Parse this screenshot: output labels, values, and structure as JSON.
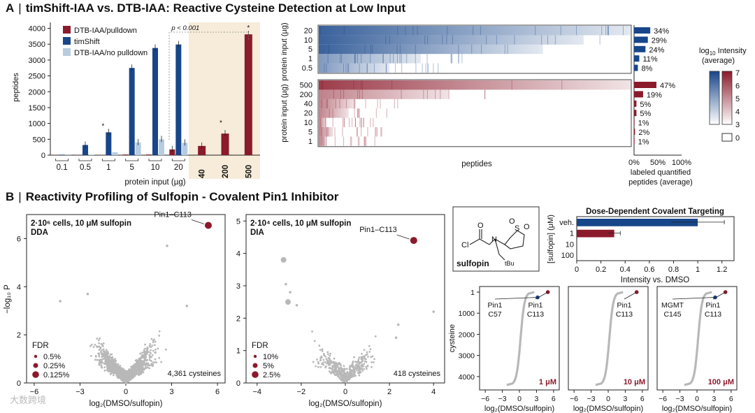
{
  "panel_a": {
    "letter": "A",
    "separator": "|",
    "title": "timShift-IAA vs. DTB-IAA: Reactive Cysteine Detection at Low Input"
  },
  "panel_b": {
    "letter": "B",
    "separator": "|",
    "title": "Reactivity Profiling of Sulfopin - Covalent Pin1 Inhibitor"
  },
  "colors": {
    "dtb": "#8b1a2b",
    "tim": "#17468a",
    "nopull": "#b8cce0",
    "grey": "#b8b8b8",
    "highlight": "#f6ecd9"
  },
  "chart_data": [
    {
      "id": "bar_a",
      "type": "bar",
      "ylabel": "peptides",
      "xlabel": "protein input (µg)",
      "yticks": [
        0,
        500,
        1000,
        1500,
        2000,
        2500,
        3000,
        3500,
        4000
      ],
      "ylim": [
        0,
        4100
      ],
      "pvalue_label": "p < 0.001",
      "categories": [
        "0.1",
        "0.5",
        "1",
        "5",
        "10",
        "20",
        "40",
        "200",
        "500"
      ],
      "series": [
        {
          "name": "DTB-IAA/pulldown",
          "values": [
            5,
            5,
            5,
            20,
            20,
            180,
            290,
            680,
            3810
          ]
        },
        {
          "name": "timShift",
          "values": [
            15,
            320,
            720,
            2750,
            3380,
            3490,
            null,
            null,
            null
          ]
        },
        {
          "name": "DTB-IAA/no pulldown",
          "values": [
            5,
            20,
            90,
            400,
            500,
            390,
            null,
            null,
            null
          ]
        }
      ],
      "star_label": "*",
      "highlighted_categories": [
        "40",
        "200",
        "500"
      ]
    },
    {
      "id": "heat_a",
      "type": "heatmap",
      "ylabel": "protein input (µg)",
      "xlabel": "peptides",
      "top_rows": [
        "20",
        "10",
        "5",
        "1",
        "0.5"
      ],
      "bottom_rows": [
        "500",
        "200",
        "40",
        "20",
        "10",
        "5",
        "1"
      ],
      "top_density": [
        1.0,
        0.85,
        0.72,
        0.33,
        0.23
      ],
      "bottom_density": [
        1.0,
        0.42,
        0.12,
        0.1,
        0.03,
        0.05,
        0.03
      ],
      "colorbar_title_prefix": "log",
      "colorbar_title_sub": "10",
      "colorbar_title_suffix": " Intensity",
      "colorbar_title_2": "(average)",
      "colorbar_ticks": [
        "7",
        "6",
        "5",
        "4",
        "3"
      ],
      "zero_label": "0"
    },
    {
      "id": "pct_a",
      "type": "bar",
      "xlabel_1": "labeled quantified",
      "xlabel_2": "peptides (average)",
      "xticks": [
        "0%",
        "50%",
        "100%"
      ],
      "top_values": [
        34,
        29,
        24,
        11,
        8
      ],
      "top_labels": [
        "34%",
        "29%",
        "24%",
        "11%",
        "8%"
      ],
      "bottom_values": [
        47,
        19,
        5,
        5,
        1,
        2,
        1
      ],
      "bottom_labels": [
        "47%",
        "19%",
        "5%",
        "5%",
        "1%",
        "2%",
        "1%"
      ]
    },
    {
      "id": "volcano_dda",
      "type": "scatter",
      "title_1": "2·10⁶ cells, 10 μM sulfopin",
      "title_2": "DDA",
      "xlabel": "log₂(DMSO/sulfopin)",
      "ylabel": "−log₁₀ P",
      "xticks": [
        -6,
        -3,
        0,
        3,
        6
      ],
      "yticks": [
        0,
        2,
        4,
        6
      ],
      "xlim": [
        -6.5,
        6.5
      ],
      "ylim": [
        0,
        7
      ],
      "highlight_label": "Pin1–C113",
      "highlight": [
        5.4,
        6.55
      ],
      "outliers": [
        [
          2.7,
          5.7
        ],
        [
          -4.3,
          3.4
        ],
        [
          -2.5,
          3.7
        ],
        [
          4.0,
          3.2
        ]
      ],
      "count_label": "4,361 cysteines",
      "fdr_title": "FDR",
      "fdr_labels": [
        "0.5%",
        "0.25%",
        "0.125%"
      ]
    },
    {
      "id": "volcano_dia",
      "type": "scatter",
      "title_1": "2·10⁴ cells, 10 μM sulfopin",
      "title_2": "DIA",
      "xlabel": "log₂(DMSO/sulfopin)",
      "xticks": [
        -4,
        -2,
        0,
        2,
        4
      ],
      "yticks": [
        0,
        1,
        2,
        3,
        4,
        5
      ],
      "xlim": [
        -4.5,
        4.5
      ],
      "ylim": [
        0,
        5.2
      ],
      "highlight_label": "Pin1–C113",
      "highlight": [
        3.1,
        4.4
      ],
      "big_grey": [
        [
          -2.8,
          3.8
        ],
        [
          -2.6,
          2.5
        ]
      ],
      "outliers": [
        [
          -2.7,
          3.05
        ],
        [
          -2.5,
          2.8
        ],
        [
          -2.2,
          2.4
        ],
        [
          2.4,
          1.8
        ],
        [
          2.3,
          1.4
        ],
        [
          4.0,
          2.2
        ]
      ],
      "count_label": "418 cysteines",
      "fdr_title": "FDR",
      "fdr_labels": [
        "10%",
        "5%",
        "2.5%"
      ]
    },
    {
      "id": "dose_bar",
      "type": "bar",
      "orientation": "horizontal",
      "title": "Dose-Dependent Covalent Targeting",
      "categories": [
        "veh.",
        "1",
        "10",
        "100"
      ],
      "values": [
        1.0,
        0.31,
        0.0,
        0.0
      ],
      "errors": [
        0.22,
        0.05,
        0,
        0
      ],
      "xticks": [
        0,
        0.2,
        0.4,
        0.6,
        0.8,
        1,
        1.2
      ],
      "xlim": [
        0,
        1.3
      ],
      "xlabel": "Intensity vs. DMSO",
      "ylabel": "[sulfopin] (μM)"
    },
    {
      "id": "rank_plots",
      "type": "scatter",
      "ylabel": "cysteine",
      "xlabel": "log₂(DMSO/sulfopin)",
      "yticks": [
        1,
        1000,
        2000,
        3000,
        4000
      ],
      "panels": [
        {
          "xticks": [
            -6,
            -3,
            0,
            3,
            6
          ],
          "dose_label": "1 μM",
          "labels": [
            "Pin1\nC57",
            "Pin1\nC113"
          ]
        },
        {
          "xticks": [
            -6,
            -3,
            0,
            3,
            6
          ],
          "dose_label": "10 μM",
          "labels": [
            "Pin1\nC113"
          ]
        },
        {
          "xticks": [
            -6,
            -3,
            0,
            3,
            6
          ],
          "dose_label": "100 μM",
          "labels": [
            "MGMT\nC145",
            "Pin1\nC113"
          ]
        }
      ]
    }
  ],
  "structure": {
    "name": "sulfopin",
    "atoms": [
      "Cl",
      "O",
      "N",
      "tBu",
      "S",
      "O",
      "O"
    ]
  },
  "watermark": "大数跨境"
}
